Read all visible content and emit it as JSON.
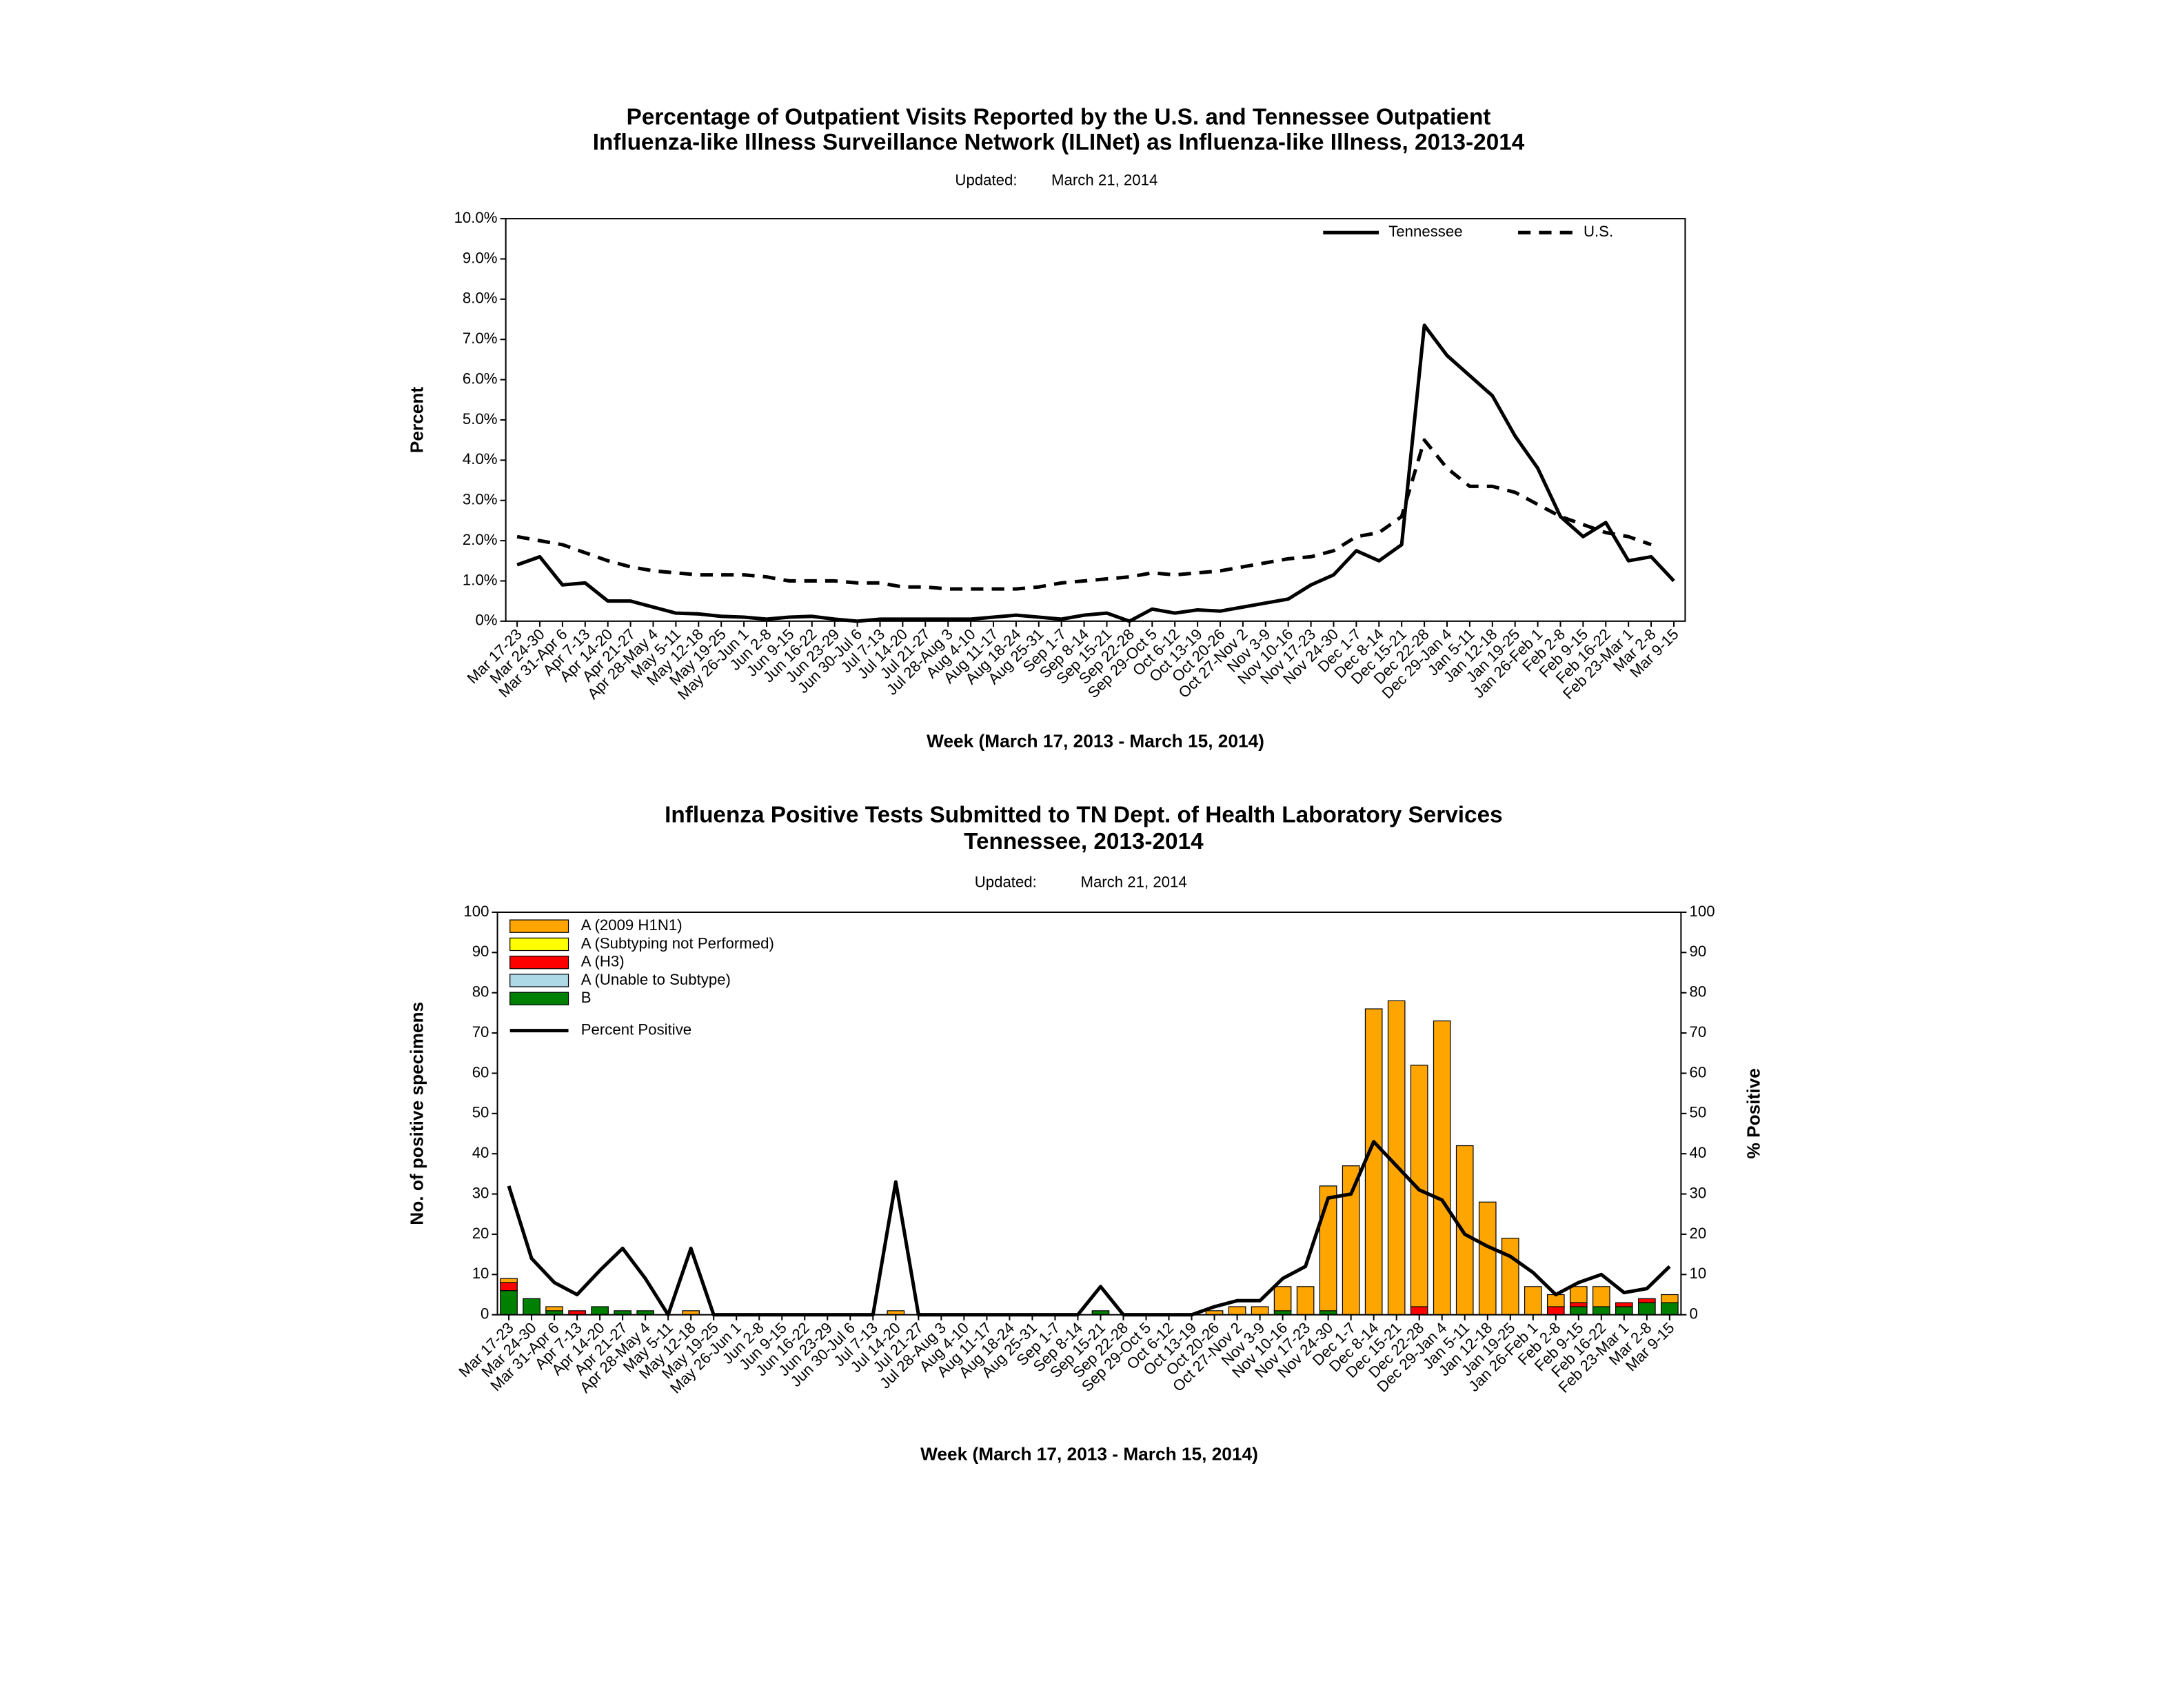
{
  "chart_data": [
    {
      "type": "line",
      "title": [
        "Percentage of Outpatient Visits Reported by the U.S. and Tennessee Outpatient",
        "Influenza-like Illness Surveillance Network (ILINet) as Influenza-like Illness, 2013-2014"
      ],
      "updated_label": "Updated:",
      "updated": "March 21, 2014",
      "y_label": "Percent",
      "x_label": "Week (March 17, 2013 - March 15, 2014)",
      "categories": [
        "Mar 17-23",
        "Mar 24-30",
        "Mar 31-Apr 6",
        "Apr 7-13",
        "Apr 14-20",
        "Apr 21-27",
        "Apr 28-May 4",
        "May 5-11",
        "May 12-18",
        "May 19-25",
        "May 26-Jun 1",
        "Jun 2-8",
        "Jun 9-15",
        "Jun 16-22",
        "Jun 23-29",
        "Jun 30-Jul 6",
        "Jul 7-13",
        "Jul 14-20",
        "Jul 21-27",
        "Jul 28-Aug 3",
        "Aug 4-10",
        "Aug 11-17",
        "Aug 18-24",
        "Aug 25-31",
        "Sep 1-7",
        "Sep 8-14",
        "Sep 15-21",
        "Sep 22-28",
        "Sep 29-Oct 5",
        "Oct 6-12",
        "Oct 13-19",
        "Oct 20-26",
        "Oct 27-Nov 2",
        "Nov 3-9",
        "Nov 10-16",
        "Nov 17-23",
        "Nov 24-30",
        "Dec 1-7",
        "Dec 8-14",
        "Dec 15-21",
        "Dec 22-28",
        "Dec 29-Jan 4",
        "Jan 5-11",
        "Jan 12-18",
        "Jan 19-25",
        "Jan 26-Feb 1",
        "Feb 2-8",
        "Feb 9-15",
        "Feb 16-22",
        "Feb 23-Mar 1",
        "Mar 2-8",
        "Mar 9-15"
      ],
      "series": [
        {
          "name": "Tennessee",
          "color": "#000000",
          "linestyle": "solid",
          "values": [
            1.4,
            1.6,
            0.9,
            0.95,
            0.5,
            0.5,
            0.35,
            0.2,
            0.18,
            0.12,
            0.1,
            0.05,
            0.1,
            0.12,
            0.05,
            0.0,
            0.05,
            0.05,
            0.05,
            0.05,
            0.05,
            0.1,
            0.15,
            0.1,
            0.05,
            0.15,
            0.2,
            0.0,
            0.3,
            0.2,
            0.28,
            0.25,
            0.35,
            0.45,
            0.55,
            0.9,
            1.15,
            1.75,
            1.5,
            1.9,
            7.35,
            6.6,
            6.1,
            5.6,
            4.6,
            3.8,
            2.6,
            2.1,
            2.45,
            1.5,
            1.6,
            1.0
          ]
        },
        {
          "name": "U.S.",
          "color": "#000000",
          "linestyle": "dashed",
          "values": [
            2.1,
            2.0,
            1.9,
            1.7,
            1.5,
            1.35,
            1.25,
            1.2,
            1.15,
            1.15,
            1.15,
            1.1,
            1.0,
            1.0,
            1.0,
            0.95,
            0.95,
            0.85,
            0.85,
            0.8,
            0.8,
            0.8,
            0.8,
            0.85,
            0.95,
            1.0,
            1.05,
            1.1,
            1.2,
            1.15,
            1.2,
            1.25,
            1.35,
            1.45,
            1.55,
            1.6,
            1.75,
            2.1,
            2.2,
            2.6,
            4.5,
            3.8,
            3.35,
            3.35,
            3.2,
            2.9,
            2.6,
            2.4,
            2.2,
            2.1,
            1.9,
            null
          ]
        }
      ],
      "ylim": [
        0,
        10
      ],
      "yticks": [
        {
          "value": 0,
          "label": "0%"
        },
        {
          "value": 1,
          "label": "1.0%"
        },
        {
          "value": 2,
          "label": "2.0%"
        },
        {
          "value": 3,
          "label": "3.0%"
        },
        {
          "value": 4,
          "label": "4.0%"
        },
        {
          "value": 5,
          "label": "5.0%"
        },
        {
          "value": 6,
          "label": "6.0%"
        },
        {
          "value": 7,
          "label": "7.0%"
        },
        {
          "value": 8,
          "label": "8.0%"
        },
        {
          "value": 9,
          "label": "9.0%"
        },
        {
          "value": 10,
          "label": "10.0%"
        }
      ],
      "legend": "upper right",
      "grid": false
    },
    {
      "type": "bar",
      "title": [
        "Influenza Positive Tests Submitted to TN Dept. of Health Laboratory Services",
        "Tennessee, 2013-2014"
      ],
      "updated_label": "Updated:",
      "updated": "March 21, 2014",
      "y_label": "No. of positive specimens",
      "y2_label": "% Positive",
      "x_label": "Week (March 17, 2013 - March 15, 2014)",
      "categories": [
        "Mar 17-23",
        "Mar 24-30",
        "Mar 31-Apr 6",
        "Apr 7-13",
        "Apr 14-20",
        "Apr 21-27",
        "Apr 28-May 4",
        "May 5-11",
        "May 12-18",
        "May 19-25",
        "May 26-Jun 1",
        "Jun 2-8",
        "Jun 9-15",
        "Jun 16-22",
        "Jun 23-29",
        "Jun 30-Jul 6",
        "Jul 7-13",
        "Jul 14-20",
        "Jul 21-27",
        "Jul 28-Aug 3",
        "Aug 4-10",
        "Aug 11-17",
        "Aug 18-24",
        "Aug 25-31",
        "Sep 1-7",
        "Sep 8-14",
        "Sep 15-21",
        "Sep 22-28",
        "Sep 29-Oct 5",
        "Oct 6-12",
        "Oct 13-19",
        "Oct 20-26",
        "Oct 27-Nov 2",
        "Nov 3-9",
        "Nov 10-16",
        "Nov 17-23",
        "Nov 24-30",
        "Dec 1-7",
        "Dec 8-14",
        "Dec 15-21",
        "Dec 22-28",
        "Dec 29-Jan 4",
        "Jan 5-11",
        "Jan 12-18",
        "Jan 19-25",
        "Jan 26-Feb 1",
        "Feb 2-8",
        "Feb 9-15",
        "Feb 16-22",
        "Feb 23-Mar 1",
        "Mar 2-8",
        "Mar 9-15"
      ],
      "series": [
        {
          "name": "A (2009 H1N1)",
          "color": "#ffa500",
          "values": [
            1,
            0,
            1,
            0,
            0,
            0,
            0,
            0,
            1,
            0,
            0,
            0,
            0,
            0,
            0,
            0,
            0,
            1,
            0,
            0,
            0,
            0,
            0,
            0,
            0,
            0,
            0,
            0,
            0,
            0,
            0,
            1,
            2,
            2,
            6,
            7,
            31,
            37,
            76,
            78,
            60,
            73,
            42,
            28,
            19,
            7,
            3,
            4,
            5,
            0,
            0,
            2
          ]
        },
        {
          "name": "A (Subtyping not Performed)",
          "color": "#ffff00",
          "values": [
            0,
            0,
            0,
            0,
            0,
            0,
            0,
            0,
            0,
            0,
            0,
            0,
            0,
            0,
            0,
            0,
            0,
            0,
            0,
            0,
            0,
            0,
            0,
            0,
            0,
            0,
            0,
            0,
            0,
            0,
            0,
            0,
            0,
            0,
            0,
            0,
            0,
            0,
            0,
            0,
            0,
            0,
            0,
            0,
            0,
            0,
            0,
            0,
            0,
            0,
            0,
            0
          ]
        },
        {
          "name": "A (H3)",
          "color": "#ff0000",
          "values": [
            2,
            0,
            0,
            1,
            0,
            0,
            0,
            0,
            0,
            0,
            0,
            0,
            0,
            0,
            0,
            0,
            0,
            0,
            0,
            0,
            0,
            0,
            0,
            0,
            0,
            0,
            0,
            0,
            0,
            0,
            0,
            0,
            0,
            0,
            0,
            0,
            0,
            0,
            0,
            0,
            2,
            0,
            0,
            0,
            0,
            0,
            2,
            1,
            0,
            1,
            1,
            0
          ]
        },
        {
          "name": "A (Unable to Subtype)",
          "color": "#add8e6",
          "values": [
            0,
            0,
            0,
            0,
            0,
            0,
            0,
            0,
            0,
            0,
            0,
            0,
            0,
            0,
            0,
            0,
            0,
            0,
            0,
            0,
            0,
            0,
            0,
            0,
            0,
            0,
            0,
            0,
            0,
            0,
            0,
            0,
            0,
            0,
            0,
            0,
            0,
            0,
            0,
            0,
            0,
            0,
            0,
            0,
            0,
            0,
            0,
            0,
            0,
            0,
            0,
            0
          ]
        },
        {
          "name": "B",
          "color": "#008000",
          "values": [
            6,
            4,
            1,
            0,
            2,
            1,
            1,
            0,
            0,
            0,
            0,
            0,
            0,
            0,
            0,
            0,
            0,
            0,
            0,
            0,
            0,
            0,
            0,
            0,
            0,
            0,
            1,
            0,
            0,
            0,
            0,
            0,
            0,
            0,
            1,
            0,
            1,
            0,
            0,
            0,
            0,
            0,
            0,
            0,
            0,
            0,
            0,
            2,
            2,
            2,
            3,
            3
          ]
        },
        {
          "name": "Percent Positive",
          "color": "#000000",
          "axis": "y2",
          "values": [
            32,
            14,
            8,
            5,
            11,
            16.5,
            9,
            0,
            16.5,
            0,
            0,
            0,
            0,
            0,
            0,
            0,
            0,
            33,
            0,
            0,
            0,
            0,
            0,
            0,
            0,
            0,
            7,
            0,
            0,
            0,
            0,
            2,
            3.5,
            3.5,
            9,
            12,
            29,
            30,
            43,
            37,
            31,
            28.5,
            20,
            17,
            14.5,
            10.5,
            5,
            8,
            10,
            5.5,
            6.5,
            12
          ]
        }
      ],
      "ylim": [
        0,
        100
      ],
      "yticks": [
        0,
        10,
        20,
        30,
        40,
        50,
        60,
        70,
        80,
        90,
        100
      ],
      "y2lim": [
        0,
        100
      ],
      "y2ticks": [
        0,
        10,
        20,
        30,
        40,
        50,
        60,
        70,
        80,
        90,
        100
      ],
      "stacked": true,
      "legend": "upper left",
      "grid": false
    }
  ]
}
